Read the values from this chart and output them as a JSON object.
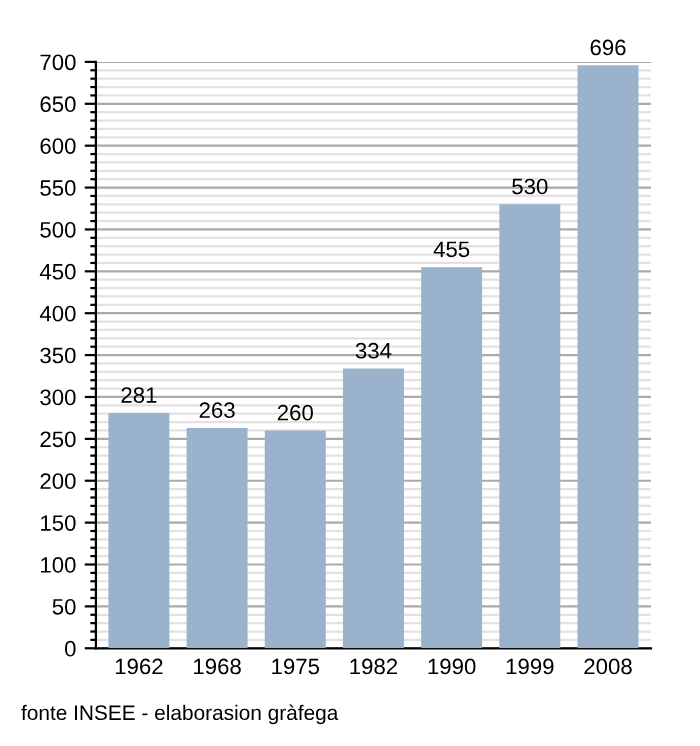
{
  "chart_data": {
    "type": "bar",
    "categories": [
      "1962",
      "1968",
      "1975",
      "1982",
      "1990",
      "1999",
      "2008"
    ],
    "values": [
      281,
      263,
      260,
      334,
      455,
      530,
      696
    ],
    "color": "#9ab2cc",
    "data_labels": true,
    "ylim": [
      0,
      700
    ],
    "yticks": [
      0,
      {
        "value": 10,
        "label": null
      },
      {
        "value": 20,
        "label": null
      },
      {
        "value": 30,
        "label": null
      },
      {
        "value": 40,
        "label": null
      },
      50,
      {
        "value": 60,
        "label": null
      },
      {
        "value": 70,
        "label": null
      },
      {
        "value": 80,
        "label": null
      },
      {
        "value": 90,
        "label": null
      },
      100,
      {
        "value": 110,
        "label": null
      },
      {
        "value": 120,
        "label": null
      },
      {
        "value": 130,
        "label": null
      },
      {
        "value": 140,
        "label": null
      },
      150,
      {
        "value": 160,
        "label": null
      },
      {
        "value": 170,
        "label": null
      },
      {
        "value": 180,
        "label": null
      },
      {
        "value": 190,
        "label": null
      },
      200,
      {
        "value": 210,
        "label": null
      },
      {
        "value": 220,
        "label": null
      },
      {
        "value": 230,
        "label": null
      },
      {
        "value": 240,
        "label": null
      },
      250,
      {
        "value": 260,
        "label": null
      },
      {
        "value": 270,
        "label": null
      },
      {
        "value": 280,
        "label": null
      },
      {
        "value": 290,
        "label": null
      },
      300,
      {
        "value": 310,
        "label": null
      },
      {
        "value": 320,
        "label": null
      },
      {
        "value": 330,
        "label": null
      },
      {
        "value": 340,
        "label": null
      },
      350,
      {
        "value": 360,
        "label": null
      },
      {
        "value": 370,
        "label": null
      },
      {
        "value": 380,
        "label": null
      },
      {
        "value": 390,
        "label": null
      },
      400,
      {
        "value": 410,
        "label": null
      },
      {
        "value": 420,
        "label": null
      },
      {
        "value": 430,
        "label": null
      },
      {
        "value": 440,
        "label": null
      },
      450,
      {
        "value": 460,
        "label": null
      },
      {
        "value": 470,
        "label": null
      },
      {
        "value": 480,
        "label": null
      },
      {
        "value": 490,
        "label": null
      },
      500,
      {
        "value": 510,
        "label": null
      },
      {
        "value": 520,
        "label": null
      },
      {
        "value": 530,
        "label": null
      },
      {
        "value": 540,
        "label": null
      },
      550,
      {
        "value": 560,
        "label": null
      },
      {
        "value": 570,
        "label": null
      },
      {
        "value": 580,
        "label": null
      },
      {
        "value": 590,
        "label": null
      },
      600,
      {
        "value": 610,
        "label": null
      },
      {
        "value": 620,
        "label": null
      },
      {
        "value": 630,
        "label": null
      },
      {
        "value": 640,
        "label": null
      },
      650,
      {
        "value": 660,
        "label": null
      },
      {
        "value": 670,
        "label": null
      },
      {
        "value": 680,
        "label": null
      },
      {
        "value": 690,
        "label": null
      },
      700
    ],
    "grid": "y",
    "annotations": [
      "fonte INSEE - elaborasion gràfega"
    ]
  }
}
